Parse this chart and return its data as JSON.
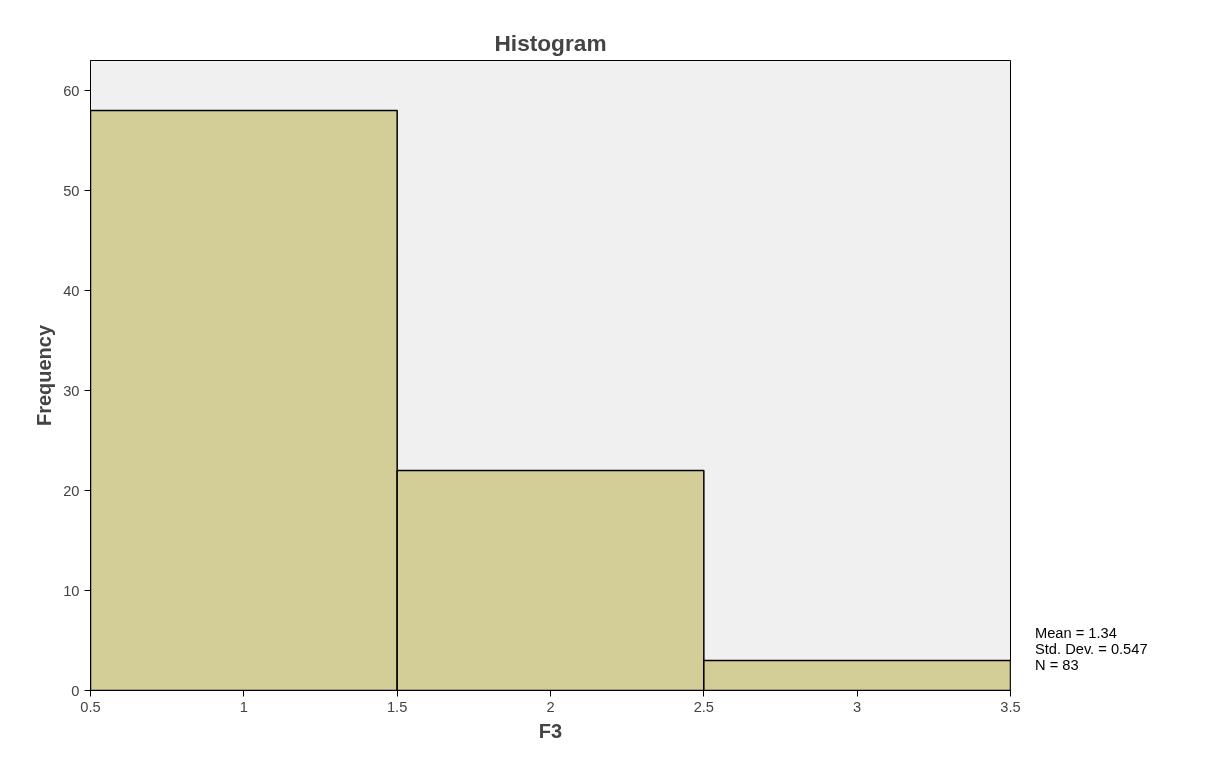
{
  "chart_data": {
    "type": "histogram",
    "title": "Histogram",
    "xlabel": "F3",
    "ylabel": "Frequency",
    "bins": [
      0.5,
      1.5,
      2.5,
      3.5
    ],
    "values": [
      58,
      22,
      3
    ],
    "color": "#d3ce97",
    "xlim": [
      0.5,
      3.5
    ],
    "xticks": [
      0.5,
      1,
      1.5,
      2,
      2.5,
      3,
      3.5
    ],
    "ylim": [
      0,
      63
    ],
    "yticks": [
      0,
      10,
      20,
      30,
      40,
      50,
      60
    ],
    "grid": false,
    "annotations": [
      "Mean = 1.34",
      "Std. Dev. = 0.547",
      "N = 83"
    ]
  }
}
